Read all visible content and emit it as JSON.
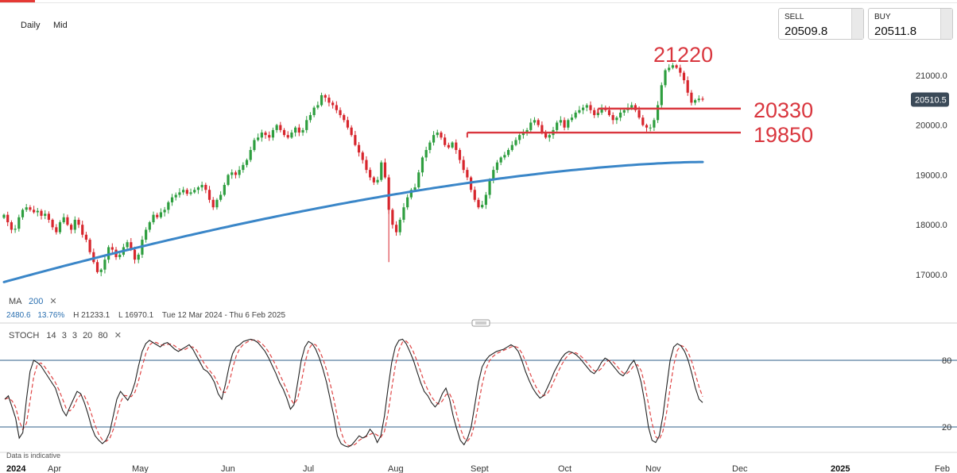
{
  "header": {
    "interval": "Daily",
    "price_type": "Mid"
  },
  "quote": {
    "sell_label": "SELL",
    "sell_value": "20509.8",
    "buy_label": "BUY",
    "buy_value": "20511.8",
    "last_price": "20510.5"
  },
  "annotations": {
    "high": "21220",
    "support_upper": "20330",
    "support_lower": "19850"
  },
  "ma_legend": {
    "label": "MA",
    "period": "200",
    "close_icon": "close-icon",
    "change_value": "2480.6",
    "change_pct": "13.76%",
    "high": "H 21233.1",
    "low": "L 16970.1",
    "range": "Tue 12 Mar 2024 - Thu 6 Feb 2025"
  },
  "stoch_legend": {
    "label": "STOCH",
    "params": [
      "14",
      "3",
      "3",
      "20",
      "80"
    ],
    "close_icon": "close-icon"
  },
  "footer": {
    "disclaimer": "Data is indicative"
  },
  "colors": {
    "up": "#2e9e3f",
    "down": "#d7262d",
    "ma": "#3a86c8",
    "annotation": "#d9363e",
    "stoch_k": "#222222",
    "stoch_d": "#e04646",
    "level_line": "#2f5f8a"
  },
  "chart_data": [
    {
      "type": "candlestick",
      "ylim": [
        16700,
        21500
      ],
      "yticks": [
        17000,
        18000,
        19000,
        20000,
        21000
      ],
      "ytick_labels": [
        "17000.0",
        "18000.0",
        "19000.0",
        "20000.0",
        "21000.0"
      ],
      "xtick_labels": [
        "2024",
        "Apr",
        "May",
        "Jun",
        "Jul",
        "Aug",
        "Sept",
        "Oct",
        "Nov",
        "Dec",
        "2025",
        "Feb"
      ],
      "closes": [
        18200,
        18050,
        17900,
        17920,
        18150,
        18300,
        18350,
        18300,
        18250,
        18280,
        18180,
        18220,
        18100,
        17950,
        17850,
        18050,
        18150,
        18000,
        17900,
        18100,
        18000,
        17800,
        17700,
        17450,
        17250,
        17050,
        17100,
        17300,
        17550,
        17500,
        17350,
        17400,
        17550,
        17650,
        17500,
        17300,
        17400,
        17700,
        17900,
        18050,
        18200,
        18150,
        18250,
        18300,
        18450,
        18550,
        18600,
        18650,
        18700,
        18620,
        18650,
        18700,
        18750,
        18800,
        18700,
        18500,
        18350,
        18500,
        18600,
        18800,
        19000,
        19050,
        19000,
        19100,
        19200,
        19300,
        19500,
        19700,
        19750,
        19850,
        19800,
        19750,
        19900,
        20000,
        19900,
        19800,
        19750,
        19850,
        19950,
        19850,
        19900,
        20100,
        20200,
        20350,
        20400,
        20600,
        20550,
        20450,
        20400,
        20300,
        20200,
        20100,
        19950,
        19800,
        19600,
        19450,
        19300,
        19100,
        18950,
        18850,
        18900,
        19250,
        18950,
        18300,
        18000,
        17850,
        18100,
        18350,
        18550,
        18700,
        18750,
        19050,
        19350,
        19500,
        19650,
        19800,
        19850,
        19750,
        19600,
        19550,
        19650,
        19500,
        19300,
        19100,
        18950,
        18700,
        18500,
        18350,
        18400,
        18600,
        18900,
        19100,
        19250,
        19350,
        19400,
        19500,
        19600,
        19700,
        19800,
        19850,
        19900,
        20050,
        20100,
        20000,
        19850,
        19750,
        19800,
        19900,
        20050,
        20100,
        19950,
        20100,
        20150,
        20250,
        20300,
        20350,
        20400,
        20300,
        20200,
        20250,
        20350,
        20300,
        20200,
        20100,
        20150,
        20250,
        20300,
        20350,
        20400,
        20300,
        20150,
        20000,
        19950,
        19950,
        20100,
        20400,
        20800,
        21100,
        21150,
        21200,
        21150,
        21050,
        20900,
        20650,
        20450,
        20500,
        20530,
        20510
      ],
      "highlighted": [
        {
          "label": "21220",
          "value": 21220
        }
      ],
      "support_levels": [
        20330,
        19850
      ],
      "ma_200": {
        "start": 16850,
        "end": 19260
      },
      "last_price": 20510.5
    },
    {
      "type": "line",
      "title": "STOCH 14 3 3 20 80",
      "ylim": [
        0,
        100
      ],
      "yticks": [
        20,
        80
      ],
      "ytick_labels": [
        "20",
        "80"
      ],
      "series_k": [
        45,
        48,
        38,
        28,
        10,
        15,
        45,
        70,
        80,
        78,
        75,
        70,
        65,
        60,
        55,
        45,
        35,
        30,
        38,
        45,
        52,
        50,
        42,
        32,
        20,
        12,
        8,
        5,
        8,
        15,
        30,
        45,
        52,
        48,
        44,
        50,
        60,
        75,
        88,
        95,
        98,
        96,
        94,
        92,
        95,
        96,
        93,
        90,
        88,
        90,
        92,
        94,
        90,
        84,
        78,
        72,
        70,
        66,
        60,
        50,
        45,
        58,
        74,
        86,
        92,
        94,
        97,
        98,
        99,
        98,
        96,
        92,
        88,
        82,
        75,
        68,
        60,
        54,
        46,
        36,
        40,
        60,
        80,
        92,
        97,
        95,
        90,
        82,
        72,
        60,
        45,
        30,
        12,
        5,
        3,
        2,
        4,
        8,
        12,
        10,
        12,
        18,
        14,
        6,
        12,
        30,
        55,
        78,
        92,
        98,
        99,
        95,
        88,
        80,
        70,
        60,
        52,
        48,
        42,
        38,
        42,
        50,
        55,
        45,
        30,
        18,
        8,
        4,
        10,
        20,
        40,
        60,
        74,
        80,
        84,
        86,
        88,
        89,
        90,
        92,
        94,
        92,
        88,
        80,
        70,
        62,
        55,
        50,
        46,
        48,
        55,
        62,
        70,
        76,
        82,
        86,
        88,
        87,
        85,
        82,
        78,
        74,
        70,
        68,
        72,
        78,
        82,
        80,
        76,
        72,
        68,
        66,
        70,
        76,
        80,
        72,
        60,
        42,
        20,
        8,
        6,
        12,
        30,
        55,
        80,
        92,
        95,
        93,
        88,
        80,
        68,
        55,
        45,
        42
      ]
    }
  ]
}
